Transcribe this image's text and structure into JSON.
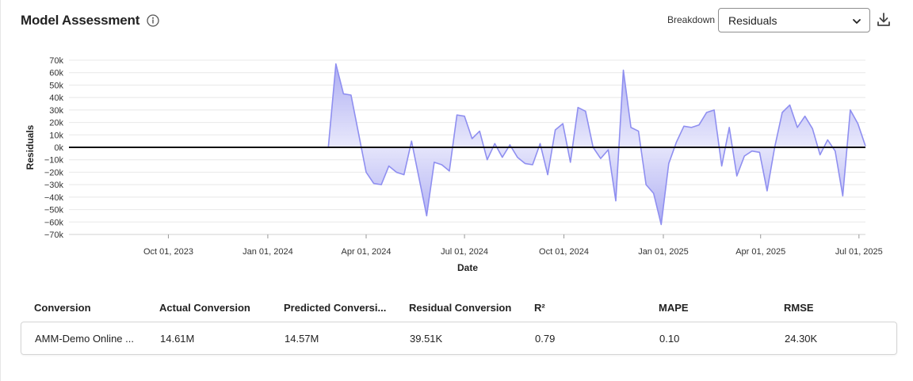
{
  "header": {
    "title": "Model Assessment"
  },
  "controls": {
    "breakdown_label": "Breakdown",
    "breakdown_value": "Residuals"
  },
  "chart_data": {
    "type": "area",
    "ylabel": "Residuals",
    "xlabel": "Date",
    "ylim": [
      -70000,
      70000
    ],
    "yticks": [
      70000,
      60000,
      50000,
      40000,
      30000,
      20000,
      10000,
      0,
      -10000,
      -20000,
      -30000,
      -40000,
      -50000,
      -60000,
      -70000
    ],
    "ytick_labels": [
      "70k",
      "60k",
      "50k",
      "40k",
      "30k",
      "20k",
      "10k",
      "0k",
      "−10k",
      "−20k",
      "−30k",
      "−40k",
      "−50k",
      "−60k",
      "−70k"
    ],
    "xlim": [
      "2023-07-01",
      "2025-07-07"
    ],
    "xticks": [
      "2023-10-01",
      "2024-01-01",
      "2024-04-01",
      "2024-07-01",
      "2024-10-01",
      "2025-01-01",
      "2025-04-01",
      "2025-07-01"
    ],
    "xtick_labels": [
      "Oct 01, 2023",
      "Jan 01, 2024",
      "Apr 01, 2024",
      "Jul 01, 2024",
      "Oct 01, 2024",
      "Jan 01, 2025",
      "Apr 01, 2025",
      "Jul 01, 2025"
    ],
    "grid": true,
    "fill_color": "#c9c9f5",
    "line_color": "#8f8ff0",
    "x": [
      "2024-02-26",
      "2024-03-04",
      "2024-03-11",
      "2024-03-18",
      "2024-03-25",
      "2024-04-01",
      "2024-04-08",
      "2024-04-15",
      "2024-04-22",
      "2024-04-29",
      "2024-05-06",
      "2024-05-13",
      "2024-05-20",
      "2024-05-27",
      "2024-06-03",
      "2024-06-10",
      "2024-06-17",
      "2024-06-24",
      "2024-07-01",
      "2024-07-08",
      "2024-07-15",
      "2024-07-22",
      "2024-07-29",
      "2024-08-05",
      "2024-08-12",
      "2024-08-19",
      "2024-08-26",
      "2024-09-02",
      "2024-09-09",
      "2024-09-16",
      "2024-09-23",
      "2024-09-30",
      "2024-10-07",
      "2024-10-14",
      "2024-10-21",
      "2024-10-28",
      "2024-11-04",
      "2024-11-11",
      "2024-11-18",
      "2024-11-25",
      "2024-12-02",
      "2024-12-09",
      "2024-12-16",
      "2024-12-23",
      "2024-12-30",
      "2025-01-06",
      "2025-01-13",
      "2025-01-20",
      "2025-01-27",
      "2025-02-03",
      "2025-02-10",
      "2025-02-17",
      "2025-02-24",
      "2025-03-03",
      "2025-03-10",
      "2025-03-17",
      "2025-03-24",
      "2025-03-31",
      "2025-04-07",
      "2025-04-14",
      "2025-04-21",
      "2025-04-28",
      "2025-05-05",
      "2025-05-12",
      "2025-05-19",
      "2025-05-26",
      "2025-06-02",
      "2025-06-09",
      "2025-06-16",
      "2025-06-23",
      "2025-06-30",
      "2025-07-07"
    ],
    "y": [
      0,
      67000,
      43000,
      42000,
      11000,
      -20000,
      -29000,
      -30000,
      -15000,
      -20000,
      -22000,
      5000,
      -25000,
      -55000,
      -12000,
      -14000,
      -19000,
      26000,
      25000,
      7000,
      13000,
      -10000,
      3000,
      -8000,
      2000,
      -8000,
      -13000,
      -14000,
      3000,
      -22000,
      14000,
      19000,
      -12000,
      32000,
      29000,
      0,
      -9000,
      -2000,
      -43000,
      62000,
      16000,
      13000,
      -30000,
      -37000,
      -62000,
      -13000,
      4000,
      17000,
      16000,
      18000,
      28000,
      30000,
      -15000,
      16000,
      -23000,
      -7000,
      -3000,
      -4000,
      -35000,
      0,
      28000,
      34000,
      16000,
      25000,
      15000,
      -6000,
      6000,
      -3000,
      -39000,
      30000,
      19000,
      1000
    ]
  },
  "table": {
    "headers": [
      "Conversion",
      "Actual Conversion",
      "Predicted Conversi...",
      "Residual Conversion",
      "R²",
      "MAPE",
      "RMSE"
    ],
    "row": [
      "AMM-Demo Online ...",
      "14.61M",
      "14.57M",
      "39.51K",
      "0.79",
      "0.10",
      "24.30K"
    ]
  }
}
